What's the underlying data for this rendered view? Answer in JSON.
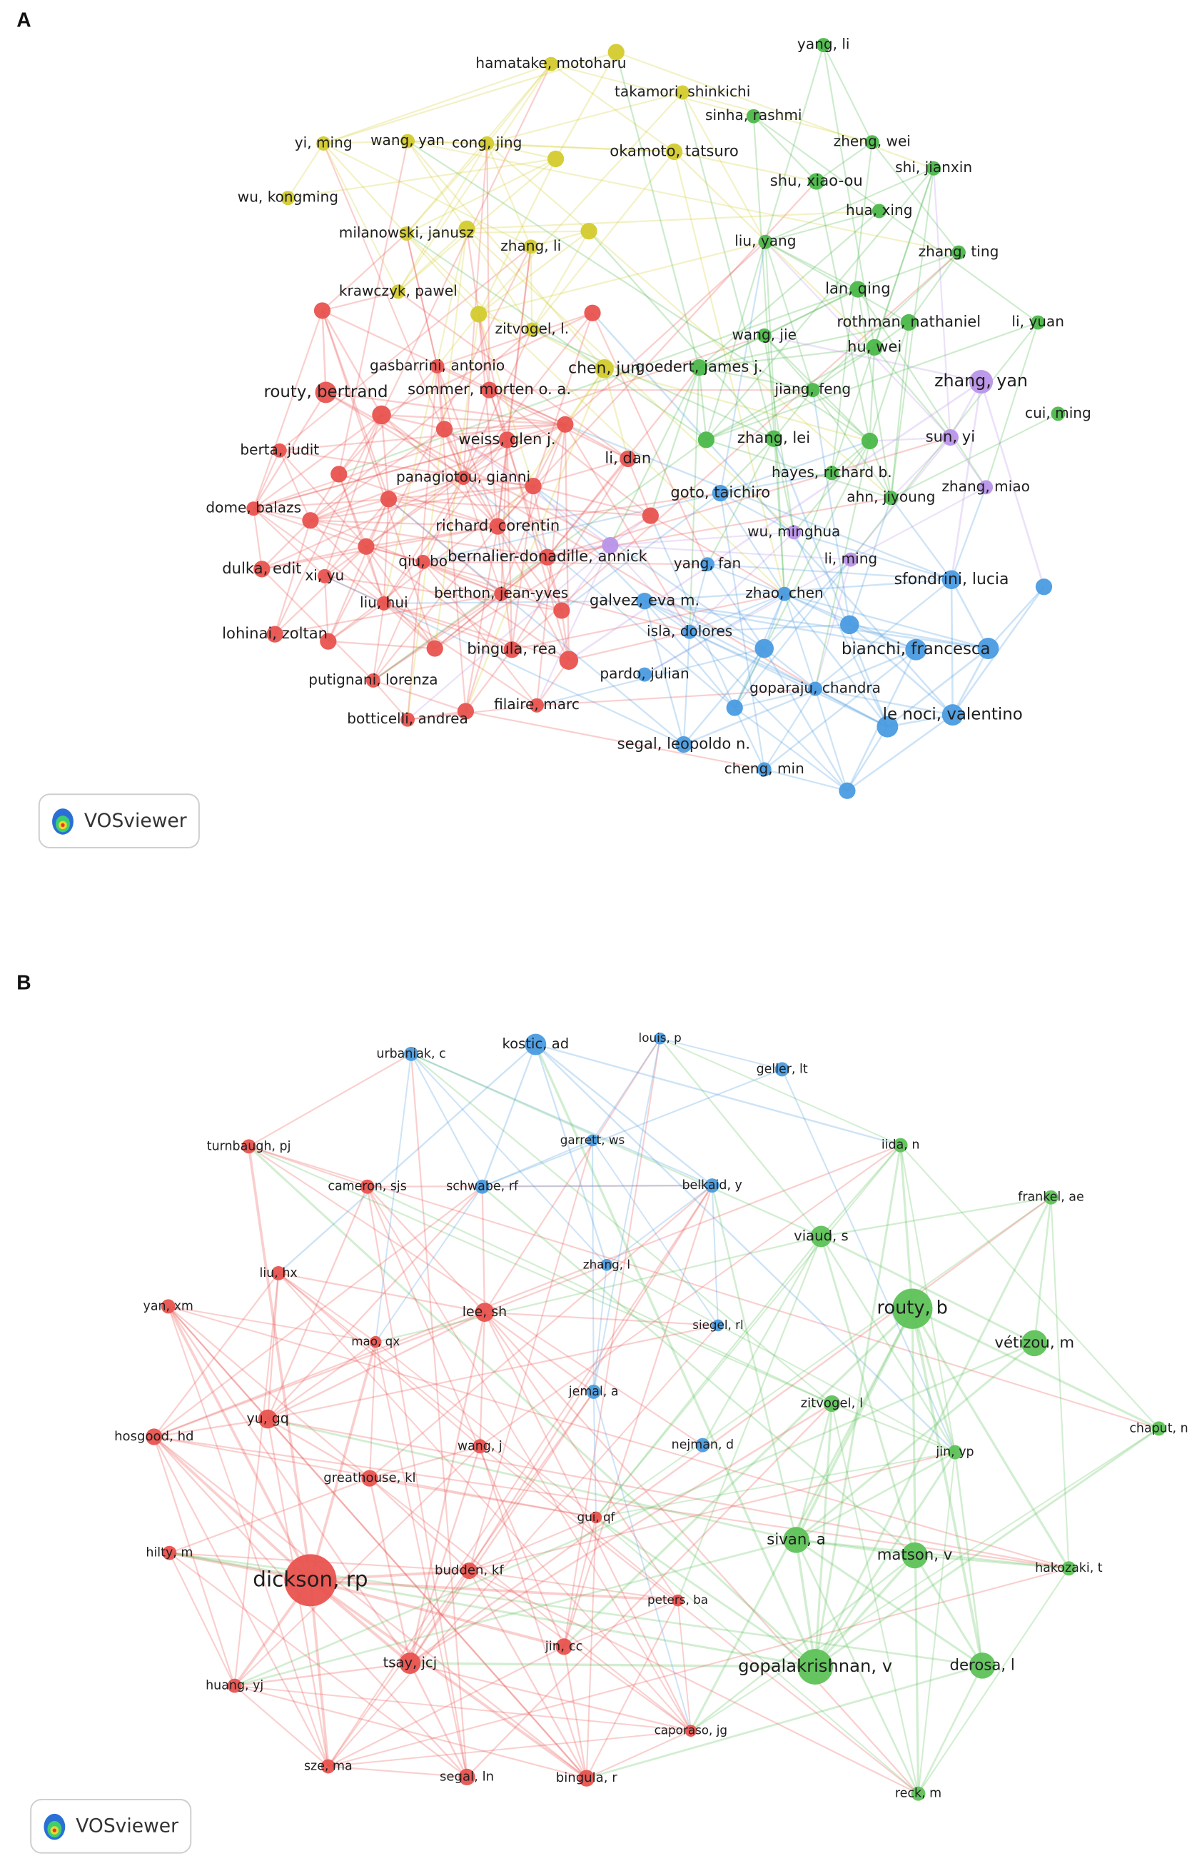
{
  "panels": [
    {
      "label": "A",
      "logo": "VOSviewer",
      "clusters": [
        {
          "color": "#e8534f",
          "nodes": [
            "routy, bertrand",
            "gasbarrini, antonio",
            "sommer, morten o. a.",
            "berta, judit",
            "weiss, glen j.",
            "panagiotou, gianni",
            "li, dan",
            "dome, balazs",
            "richard, corentin",
            "qiu, bo",
            "bernalier-donadille, annick",
            "dulka, edit",
            "xi, yu",
            "liu, hui",
            "berthon, jean-yves",
            "lohinai, zoltan",
            "bingula, rea",
            "putignani, lorenza",
            "botticelli, andrea",
            "filaire, marc"
          ]
        },
        {
          "color": "#d3cb2e",
          "nodes": [
            "hamatake, motoharu",
            "takamori, shinkichi",
            "okamoto, tatsuro",
            "yi, ming",
            "wang, yan",
            "cong, jing",
            "wu, kongming",
            "milanowski, janusz",
            "zhang, li",
            "krawczyk, pawel",
            "zitvogel, l.",
            "chen, jun"
          ]
        },
        {
          "color": "#4cb84a",
          "nodes": [
            "yang, li",
            "sinha, rashmi",
            "zheng, wei",
            "shi, jianxin",
            "shu, xiao-ou",
            "hua, xing",
            "liu, yang",
            "zhang, ting",
            "lan, qing",
            "rothman, nathaniel",
            "li, yuan",
            "wang, jie",
            "hu, wei",
            "goedert, james j.",
            "jiang, feng",
            "cui, ming",
            "zhang, lei",
            "hayes, richard b.",
            "ahn, jiyoung"
          ]
        },
        {
          "color": "#b994e8",
          "nodes": [
            "zhang, yan",
            "sun, yi",
            "zhang, miao",
            "wu, minghua",
            "li, ming"
          ]
        },
        {
          "color": "#4a9be0",
          "nodes": [
            "goto, taichiro",
            "yang, fan",
            "sfondrini, lucia",
            "galvez, eva m.",
            "zhao, chen",
            "bianchi, francesca",
            "isla, dolores",
            "pardo, julian",
            "goparaju, chandra",
            "le noci, valentino",
            "segal, leopoldo n.",
            "cheng, min"
          ]
        }
      ]
    },
    {
      "label": "B",
      "logo": "VOSviewer",
      "clusters": [
        {
          "color": "#e8534f",
          "nodes": [
            "turnbaugh, pj",
            "cameron, sjs",
            "liu, hx",
            "yan, xm",
            "lee, sh",
            "mao, qx",
            "hosgood, hd",
            "yu, gq",
            "wang, j",
            "greathouse, kl",
            "gui, qf",
            "hilty, m",
            "dickson, rp",
            "budden, kf",
            "peters, ba",
            "jin, cc",
            "tsay, jcj",
            "huang, yj",
            "caporaso, jg",
            "sze, ma",
            "segal, ln",
            "bingula, r"
          ]
        },
        {
          "color": "#4a9be0",
          "nodes": [
            "urbaniak, c",
            "kostic, ad",
            "louis, p",
            "geller, lt",
            "garrett, ws",
            "schwabe, rf",
            "belkaid, y",
            "zhang, l",
            "siegel, rl",
            "jemal, a",
            "nejman, d"
          ]
        },
        {
          "color": "#5ec259",
          "nodes": [
            "iida, n",
            "frankel, ae",
            "viaud, s",
            "routy, b",
            "vétizou, m",
            "zitvogel, l",
            "chaput, n",
            "jin, yp",
            "sivan, a",
            "matson, v",
            "hakozaki, t",
            "gopalakrishnan, v",
            "derosa, l",
            "reck, m"
          ]
        }
      ]
    }
  ]
}
